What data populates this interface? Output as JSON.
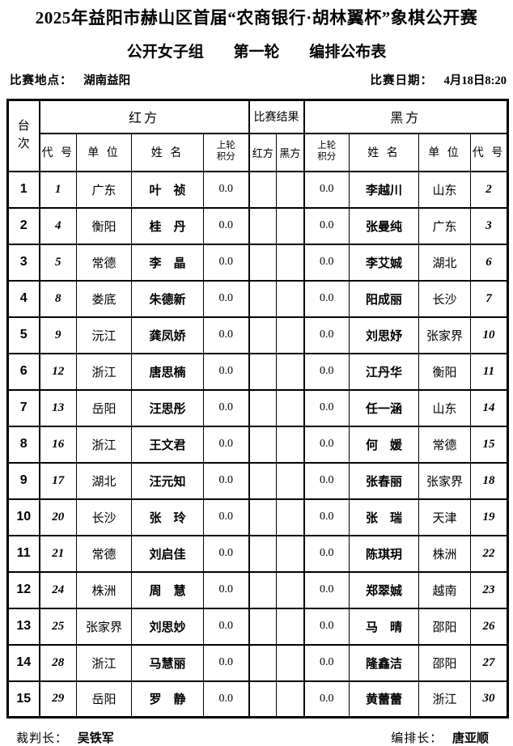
{
  "title": "2025年益阳市赫山区首届“农商银行·胡林翼杯”象棋公开赛",
  "subtitle": {
    "group": "公开女子组",
    "round": "第一轮",
    "sheet": "编排公布表"
  },
  "info": {
    "venue_label": "比赛地点：",
    "venue": "湖南益阳",
    "date_label": "比赛日期：",
    "date": "4月18日8:20"
  },
  "table": {
    "headers": {
      "board_line1": "台",
      "board_line2": "次",
      "red_group": "红方",
      "result_group": "比赛结果",
      "black_group": "黑方",
      "code": "代 号",
      "unit": "单 位",
      "name": "姓 名",
      "prev_line1": "上轮",
      "prev_line2": "积分",
      "result_red": "红方",
      "result_black": "黑方"
    },
    "rows": [
      {
        "board": "1",
        "red": {
          "code": "1",
          "unit": "广东",
          "name": "叶　祯",
          "score": "0.0"
        },
        "result": {
          "red": "",
          "black": ""
        },
        "black": {
          "score": "0.0",
          "name": "李越川",
          "unit": "山东",
          "code": "2"
        }
      },
      {
        "board": "2",
        "red": {
          "code": "4",
          "unit": "衡阳",
          "name": "桂　丹",
          "score": "0.0"
        },
        "result": {
          "red": "",
          "black": ""
        },
        "black": {
          "score": "0.0",
          "name": "张曼纯",
          "unit": "广东",
          "code": "3"
        }
      },
      {
        "board": "3",
        "red": {
          "code": "5",
          "unit": "常德",
          "name": "李　晶",
          "score": "0.0"
        },
        "result": {
          "red": "",
          "black": ""
        },
        "black": {
          "score": "0.0",
          "name": "李艾娍",
          "unit": "湖北",
          "code": "6"
        }
      },
      {
        "board": "4",
        "red": {
          "code": "8",
          "unit": "娄底",
          "name": "朱德新",
          "score": "0.0"
        },
        "result": {
          "red": "",
          "black": ""
        },
        "black": {
          "score": "0.0",
          "name": "阳成丽",
          "unit": "长沙",
          "code": "7"
        }
      },
      {
        "board": "5",
        "red": {
          "code": "9",
          "unit": "沅江",
          "name": "龚凤娇",
          "score": "0.0"
        },
        "result": {
          "red": "",
          "black": ""
        },
        "black": {
          "score": "0.0",
          "name": "刘思妤",
          "unit": "张家界",
          "code": "10"
        }
      },
      {
        "board": "6",
        "red": {
          "code": "12",
          "unit": "浙江",
          "name": "唐思楠",
          "score": "0.0"
        },
        "result": {
          "red": "",
          "black": ""
        },
        "black": {
          "score": "0.0",
          "name": "江丹华",
          "unit": "衡阳",
          "code": "11"
        }
      },
      {
        "board": "7",
        "red": {
          "code": "13",
          "unit": "岳阳",
          "name": "汪思彤",
          "score": "0.0"
        },
        "result": {
          "red": "",
          "black": ""
        },
        "black": {
          "score": "0.0",
          "name": "任一涵",
          "unit": "山东",
          "code": "14"
        }
      },
      {
        "board": "8",
        "red": {
          "code": "16",
          "unit": "浙江",
          "name": "王文君",
          "score": "0.0"
        },
        "result": {
          "red": "",
          "black": ""
        },
        "black": {
          "score": "0.0",
          "name": "何　媛",
          "unit": "常德",
          "code": "15"
        }
      },
      {
        "board": "9",
        "red": {
          "code": "17",
          "unit": "湖北",
          "name": "汪元知",
          "score": "0.0"
        },
        "result": {
          "red": "",
          "black": ""
        },
        "black": {
          "score": "0.0",
          "name": "张春丽",
          "unit": "张家界",
          "code": "18"
        }
      },
      {
        "board": "10",
        "red": {
          "code": "20",
          "unit": "长沙",
          "name": "张　玲",
          "score": "0.0"
        },
        "result": {
          "red": "",
          "black": ""
        },
        "black": {
          "score": "0.0",
          "name": "张　瑞",
          "unit": "天津",
          "code": "19"
        }
      },
      {
        "board": "11",
        "red": {
          "code": "21",
          "unit": "常德",
          "name": "刘启佳",
          "score": "0.0"
        },
        "result": {
          "red": "",
          "black": ""
        },
        "black": {
          "score": "0.0",
          "name": "陈琪玥",
          "unit": "株洲",
          "code": "22"
        }
      },
      {
        "board": "12",
        "red": {
          "code": "24",
          "unit": "株洲",
          "name": "周　慧",
          "score": "0.0"
        },
        "result": {
          "red": "",
          "black": ""
        },
        "black": {
          "score": "0.0",
          "name": "郑翠娍",
          "unit": "越南",
          "code": "23"
        }
      },
      {
        "board": "13",
        "red": {
          "code": "25",
          "unit": "张家界",
          "name": "刘思妙",
          "score": "0.0"
        },
        "result": {
          "red": "",
          "black": ""
        },
        "black": {
          "score": "0.0",
          "name": "马　晴",
          "unit": "邵阳",
          "code": "26"
        }
      },
      {
        "board": "14",
        "red": {
          "code": "28",
          "unit": "浙江",
          "name": "马慧丽",
          "score": "0.0"
        },
        "result": {
          "red": "",
          "black": ""
        },
        "black": {
          "score": "0.0",
          "name": "隆鑫洁",
          "unit": "邵阳",
          "code": "27"
        }
      },
      {
        "board": "15",
        "red": {
          "code": "29",
          "unit": "岳阳",
          "name": "罗　静",
          "score": "0.0"
        },
        "result": {
          "red": "",
          "black": ""
        },
        "black": {
          "score": "0.0",
          "name": "黄蕾蕾",
          "unit": "浙江",
          "code": "30"
        }
      }
    ]
  },
  "footer": {
    "referee_label": "裁判长：",
    "referee": "吴铁军",
    "arranger_label": "编排长：",
    "arranger": "唐亚顺"
  }
}
